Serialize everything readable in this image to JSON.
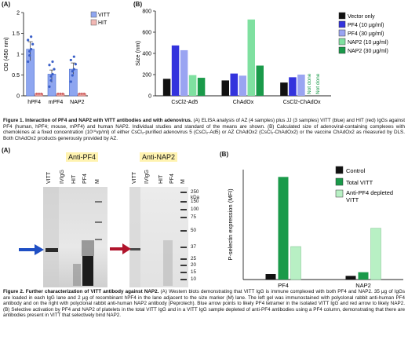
{
  "figure1": {
    "panelA": {
      "label": "(A)",
      "legend": [
        "VITT",
        "HIT"
      ],
      "colors": {
        "VITT": "#8ea6f0",
        "HIT": "#f2b8b4"
      },
      "chart_data": {
        "type": "bar",
        "categories": [
          "hPF4",
          "mPF4",
          "NAP2"
        ],
        "series": [
          {
            "name": "VITT",
            "values": [
              1.12,
              0.52,
              0.64
            ]
          },
          {
            "name": "HIT",
            "values": [
              0.05,
              0.05,
              0.05
            ]
          }
        ],
        "ylabel": "OD (450 nm)",
        "ylim": [
          0,
          2
        ],
        "yticks": [
          "0",
          "0.5",
          "1",
          "1.5",
          "2"
        ]
      }
    },
    "panelB": {
      "label": "(B)",
      "not_done": [
        "Not done",
        "Not done"
      ],
      "legend": [
        "Vector only",
        "PF4 (10 μg/ml)",
        "PF4 (30 μg/ml)",
        "NAP2 (10 μg/ml)",
        "NAP2 (30 μg/ml)"
      ],
      "colors": [
        "#111111",
        "#3333dd",
        "#9aa4f2",
        "#7fe0a0",
        "#1a9a4a"
      ],
      "chart_data": {
        "type": "bar",
        "categories": [
          "CsCl2-Ad5",
          "ChAdOx",
          "CsCl2-ChAdOx"
        ],
        "series": [
          {
            "name": "Vector only",
            "values": [
              160,
              145,
              125
            ]
          },
          {
            "name": "PF4 (10 μg/ml)",
            "values": [
              475,
              210,
              175
            ]
          },
          {
            "name": "PF4 (30 μg/ml)",
            "values": [
              430,
              190,
              200
            ]
          },
          {
            "name": "NAP2 (10 μg/ml)",
            "values": [
              195,
              720,
              null
            ]
          },
          {
            "name": "NAP2 (30 μg/ml)",
            "values": [
              170,
              285,
              null
            ]
          }
        ],
        "ylabel": "Size (nm)",
        "ylim": [
          0,
          800
        ],
        "yticks": [
          "0",
          "200",
          "400",
          "600",
          "800"
        ]
      }
    },
    "caption": {
      "title": "Figure 1. Interaction of PF4 and NAP2 with VITT antibodies and with adenovirus.",
      "body": "(A) ELISA analysis of AZ (4 samples) plus JJ (3 samples) VITT (blue) and HIT (red) IgGs against PF4 (human, hPF4; mouse, mPF4) and human NAP2. Individual studies and standard of the means are shown. (B) Calculated size of adenoviral-containing complexes with chemokines at a fixed concentration (10¹⁰vp/ml) of either CsCl₂-purified adenovirus 5 (CsCl₂-Ad5) or AZ ChAdOx2 (CsCl₂-ChAdOx2) or the vaccine ChAdOx2 as measured by DLS. Both ChAdOx2 products generously provided by AZ."
    }
  },
  "figure2": {
    "panelA": {
      "label": "(A)",
      "blot_left_title": "Anti-PF4",
      "blot_right_title": "Anti-NAP2",
      "lanes": [
        "VITT",
        "IVIgG",
        "HIT",
        "PF4",
        "M"
      ],
      "kda_label": "250 kDa",
      "markers": [
        "150",
        "100",
        "75",
        "50",
        "37",
        "25",
        "20",
        "15",
        "10"
      ]
    },
    "panelB": {
      "label": "(B)",
      "legend": [
        "Control",
        "Total VITT",
        "Anti-PF4 depleted VITT"
      ],
      "colors": [
        "#111111",
        "#1a9a4a",
        "#b8f0c4"
      ],
      "chart_data": {
        "type": "bar",
        "categories": [
          "PF4",
          "NAP2"
        ],
        "series": [
          {
            "name": "Control",
            "values": [
              3,
              2
            ]
          },
          {
            "name": "Total VITT",
            "values": [
              56,
              4
            ]
          },
          {
            "name": "Anti-PF4 depleted VITT",
            "values": [
              18,
              28
            ]
          }
        ],
        "ylabel": "P-selectin expression (MFI)",
        "ylim": [
          0,
          60
        ]
      }
    },
    "caption": {
      "title": "Figure 2. Further characterization of VITT antibody against NAP2.",
      "body": "(A) Western blots demonstrating that VITT IgG is immune complexed with both PF4 and NAP2. 35 μg of IgGs are loaded in each IgG lane and 2 μg of recombinant hPF4 in the lane adjacent to the size marker (M) lane. The left gel was immunostained with polyclonal rabbit anti-human PF4 antibody and on the right with polyclonal rabbit anti-human NAP2 antibody (Peprotech). Blue arrow points to likely PF4 tetramer in the isolated VITT IgG and red arrow to likely NAP2. (B) Selective activation by PF4 and NAP2 of platelets in the total VITT IgG and in a VITT IgG sample depleted of anti-PF4 antibodies using a PF4 column, demonstrating that there are antibodies present in VITT that selectively bind NAP2."
    }
  }
}
